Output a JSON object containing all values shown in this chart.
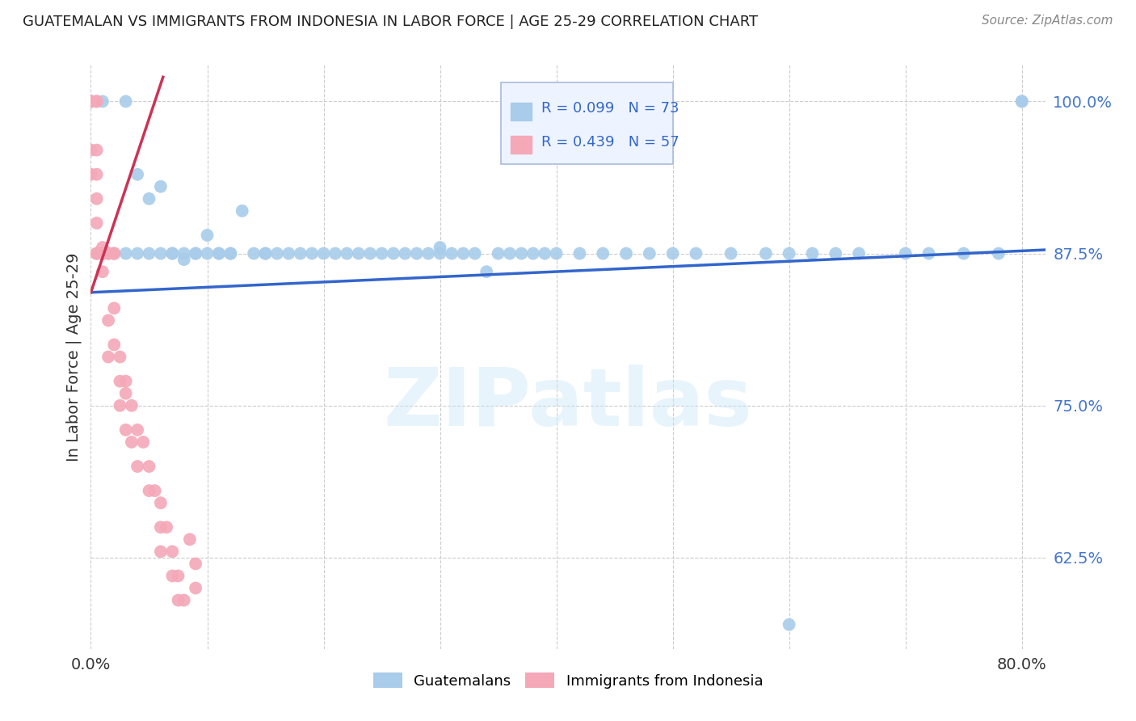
{
  "title": "GUATEMALAN VS IMMIGRANTS FROM INDONESIA IN LABOR FORCE | AGE 25-29 CORRELATION CHART",
  "source": "Source: ZipAtlas.com",
  "xlim": [
    0.0,
    0.82
  ],
  "ylim": [
    0.55,
    1.03
  ],
  "ylabel": "In Labor Force | Age 25-29",
  "blue_R": 0.099,
  "blue_N": 73,
  "pink_R": 0.439,
  "pink_N": 57,
  "blue_color": "#A8CCEA",
  "pink_color": "#F4A8B8",
  "blue_line_color": "#3366CC",
  "pink_line_color": "#CC3355",
  "watermark": "ZIPatlas",
  "blue_scatter_x": [
    0.005,
    0.01,
    0.01,
    0.02,
    0.03,
    0.03,
    0.04,
    0.04,
    0.05,
    0.05,
    0.06,
    0.06,
    0.07,
    0.07,
    0.08,
    0.08,
    0.09,
    0.09,
    0.1,
    0.1,
    0.11,
    0.11,
    0.12,
    0.12,
    0.13,
    0.14,
    0.15,
    0.15,
    0.16,
    0.17,
    0.18,
    0.19,
    0.2,
    0.21,
    0.22,
    0.23,
    0.24,
    0.25,
    0.26,
    0.27,
    0.28,
    0.29,
    0.3,
    0.3,
    0.31,
    0.32,
    0.33,
    0.34,
    0.35,
    0.36,
    0.37,
    0.38,
    0.39,
    0.4,
    0.42,
    0.44,
    0.46,
    0.48,
    0.5,
    0.52,
    0.55,
    0.58,
    0.6,
    0.62,
    0.64,
    0.66,
    0.7,
    0.72,
    0.75,
    0.78,
    0.8,
    0.8,
    0.6
  ],
  "blue_scatter_y": [
    0.875,
    0.875,
    1.0,
    0.875,
    1.0,
    0.875,
    0.875,
    0.94,
    0.875,
    0.92,
    0.875,
    0.93,
    0.875,
    0.875,
    0.875,
    0.87,
    0.875,
    0.875,
    0.875,
    0.89,
    0.875,
    0.875,
    0.875,
    0.875,
    0.91,
    0.875,
    0.875,
    0.875,
    0.875,
    0.875,
    0.875,
    0.875,
    0.875,
    0.875,
    0.875,
    0.875,
    0.875,
    0.875,
    0.875,
    0.875,
    0.875,
    0.875,
    0.875,
    0.88,
    0.875,
    0.875,
    0.875,
    0.86,
    0.875,
    0.875,
    0.875,
    0.875,
    0.875,
    0.875,
    0.875,
    0.875,
    0.875,
    0.875,
    0.875,
    0.875,
    0.875,
    0.875,
    0.875,
    0.875,
    0.875,
    0.875,
    0.875,
    0.875,
    0.875,
    0.875,
    1.0,
    1.0,
    0.57
  ],
  "pink_scatter_x": [
    0.0,
    0.0,
    0.0,
    0.0,
    0.0,
    0.0,
    0.0,
    0.0,
    0.005,
    0.005,
    0.005,
    0.005,
    0.005,
    0.005,
    0.005,
    0.005,
    0.01,
    0.01,
    0.01,
    0.01,
    0.01,
    0.01,
    0.015,
    0.015,
    0.015,
    0.015,
    0.015,
    0.02,
    0.02,
    0.02,
    0.02,
    0.025,
    0.025,
    0.025,
    0.03,
    0.03,
    0.03,
    0.035,
    0.035,
    0.04,
    0.04,
    0.045,
    0.05,
    0.05,
    0.055,
    0.06,
    0.06,
    0.06,
    0.065,
    0.07,
    0.07,
    0.075,
    0.075,
    0.08,
    0.085,
    0.09,
    0.09
  ],
  "pink_scatter_y": [
    1.0,
    1.0,
    1.0,
    1.0,
    1.0,
    1.0,
    0.96,
    0.94,
    1.0,
    1.0,
    0.96,
    0.94,
    0.92,
    0.9,
    0.875,
    0.875,
    0.875,
    0.875,
    0.875,
    0.875,
    0.88,
    0.86,
    0.875,
    0.875,
    0.875,
    0.82,
    0.79,
    0.875,
    0.875,
    0.83,
    0.8,
    0.79,
    0.77,
    0.75,
    0.77,
    0.76,
    0.73,
    0.75,
    0.72,
    0.73,
    0.7,
    0.72,
    0.7,
    0.68,
    0.68,
    0.67,
    0.65,
    0.63,
    0.65,
    0.63,
    0.61,
    0.61,
    0.59,
    0.59,
    0.64,
    0.62,
    0.6
  ],
  "blue_trend_x": [
    0.0,
    0.82
  ],
  "blue_trend_y": [
    0.843,
    0.878
  ],
  "pink_trend_x": [
    0.0,
    0.062
  ],
  "pink_trend_y": [
    0.843,
    1.02
  ]
}
